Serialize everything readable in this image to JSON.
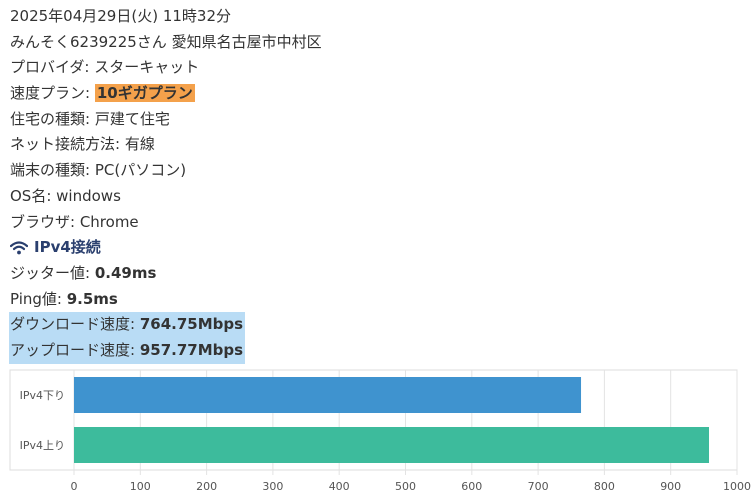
{
  "datetime": "2025年04月29日(火) 11時32分",
  "user_line": "みんそく6239225さん 愛知県名古屋市中村区",
  "provider": {
    "label": "プロバイダ: ",
    "value": "スターキャット"
  },
  "plan": {
    "label": "速度プラン: ",
    "value": "10ギガプラン",
    "highlight_color": "#f4a14b"
  },
  "housing": {
    "label": "住宅の種類: ",
    "value": "戸建て住宅"
  },
  "connection": {
    "label": "ネット接続方法: ",
    "value": "有線"
  },
  "device": {
    "label": "端末の種類: ",
    "value": "PC(パソコン)"
  },
  "os": {
    "label": "OS名: ",
    "value": "windows"
  },
  "browser": {
    "label": "ブラウザ: ",
    "value": "Chrome"
  },
  "ipv4_heading": {
    "label": "IPv4接続",
    "icon": "wifi-icon",
    "color": "#2a3f6e"
  },
  "jitter": {
    "label": "ジッター値: ",
    "value": "0.49ms"
  },
  "ping": {
    "label": "Ping値: ",
    "value": "9.5ms"
  },
  "download": {
    "label": "ダウンロード速度: ",
    "value": "764.75Mbps",
    "highlight_color": "#b9dcf5"
  },
  "upload": {
    "label": "アップロード速度: ",
    "value": "957.77Mbps",
    "highlight_color": "#b9dcf5"
  },
  "chart_data": {
    "type": "bar",
    "orientation": "horizontal",
    "categories": [
      "IPv4下り",
      "IPv4上り"
    ],
    "values": [
      764.75,
      957.77
    ],
    "colors": [
      "#3f93cf",
      "#3dbb9c"
    ],
    "xlim": [
      0,
      1000
    ],
    "xticks": [
      0,
      100,
      200,
      300,
      400,
      500,
      600,
      700,
      800,
      900,
      1000
    ],
    "grid": true,
    "legend": "none",
    "title": "",
    "xlabel": "",
    "ylabel": ""
  }
}
